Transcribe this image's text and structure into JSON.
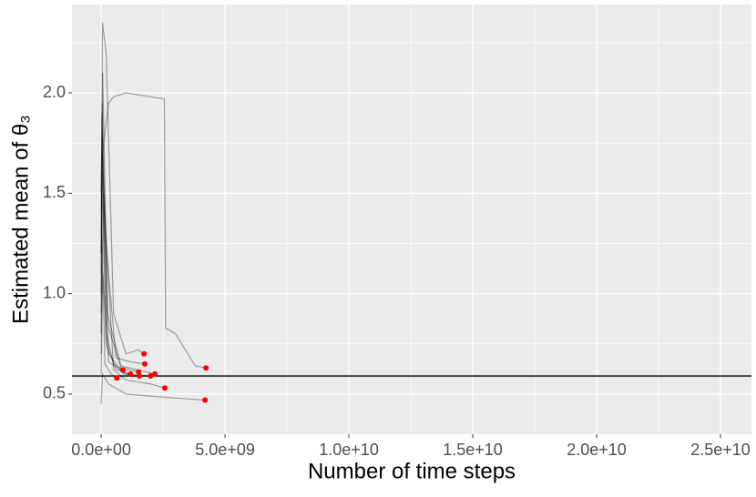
{
  "chart_data": {
    "type": "line",
    "xlabel": "Number of time steps",
    "ylabel": "Estimated mean of θ₃",
    "xlim": [
      -1180000000,
      26250000000
    ],
    "ylim": [
      0.3,
      2.44
    ],
    "xticks": [
      {
        "value": 0,
        "label": "0.0e+00"
      },
      {
        "value": 5000000000,
        "label": "5.0e+09"
      },
      {
        "value": 10000000000,
        "label": "1.0e+10"
      },
      {
        "value": 15000000000,
        "label": "1.5e+10"
      },
      {
        "value": 20000000000,
        "label": "2.0e+10"
      },
      {
        "value": 25000000000,
        "label": "2.5e+10"
      }
    ],
    "yticks": [
      0.5,
      {
        "value": 1,
        "label": "1.0"
      },
      1.5,
      {
        "value": 2,
        "label": "2.0"
      }
    ],
    "x_minor_grid": [
      2500000000,
      7500000000,
      12500000000,
      17500000000,
      22500000000
    ],
    "y_minor_grid": [
      0.75,
      1.25,
      1.75,
      2.25
    ],
    "panel_color": "#ebebeb",
    "grid": true,
    "hline": 0.59,
    "hline_color": "#000000",
    "line_color": "#000000",
    "line_opacity": 0.35,
    "point_color": "#ff0000",
    "series": [
      {
        "x": [
          0,
          50000000,
          200000000,
          500000000,
          1000000000,
          1500000000,
          1730000000
        ],
        "values": [
          1.0,
          2.35,
          2.2,
          0.9,
          0.7,
          0.72,
          0.7
        ]
      },
      {
        "x": [
          0,
          40000000,
          150000000,
          600000000,
          1200000000,
          1760000000
        ],
        "values": [
          1.1,
          1.8,
          1.3,
          0.68,
          0.66,
          0.65
        ]
      },
      {
        "x": [
          0,
          50000000,
          300000000,
          500000000,
          1000000000,
          2000000000,
          2550000000,
          2600000000,
          3000000000,
          3500000000,
          3800000000,
          4230000000
        ],
        "values": [
          1.2,
          1.7,
          1.95,
          1.98,
          2.0,
          1.98,
          1.97,
          0.83,
          0.8,
          0.7,
          0.64,
          0.63
        ]
      },
      {
        "x": [
          0,
          100000000,
          500000000,
          1000000000,
          2000000000,
          2570000000
        ],
        "values": [
          0.8,
          1.5,
          0.62,
          0.57,
          0.55,
          0.53
        ]
      },
      {
        "x": [
          0,
          50000000,
          300000000,
          1000000000,
          2000000000,
          3000000000,
          4190000000
        ],
        "values": [
          0.45,
          0.6,
          0.55,
          0.5,
          0.49,
          0.48,
          0.47
        ]
      },
      {
        "x": [
          0,
          60000000,
          250000000,
          800000000,
          1500000000,
          2170000000
        ],
        "values": [
          1.3,
          2.1,
          0.9,
          0.64,
          0.62,
          0.6
        ]
      },
      {
        "x": [
          0,
          30000000,
          200000000,
          500000000,
          880000000
        ],
        "values": [
          1.4,
          1.9,
          0.8,
          0.65,
          0.62
        ]
      },
      {
        "x": [
          0,
          40000000,
          200000000,
          600000000,
          1180000000
        ],
        "values": [
          0.9,
          1.6,
          0.75,
          0.62,
          0.6
        ]
      },
      {
        "x": [
          0,
          50000000,
          300000000,
          900000000,
          1540000000
        ],
        "values": [
          1.2,
          1.7,
          0.7,
          0.6,
          0.59
        ]
      },
      {
        "x": [
          0,
          30000000,
          150000000,
          400000000,
          630000000
        ],
        "values": [
          0.7,
          1.3,
          0.65,
          0.6,
          0.58
        ]
      },
      {
        "x": [
          0,
          40000000,
          250000000,
          800000000,
          1510000000
        ],
        "values": [
          1.5,
          1.95,
          0.85,
          0.63,
          0.61
        ]
      },
      {
        "x": [
          0,
          60000000,
          300000000,
          1000000000,
          1990000000
        ],
        "values": [
          0.6,
          1.1,
          0.66,
          0.6,
          0.59
        ]
      }
    ]
  }
}
